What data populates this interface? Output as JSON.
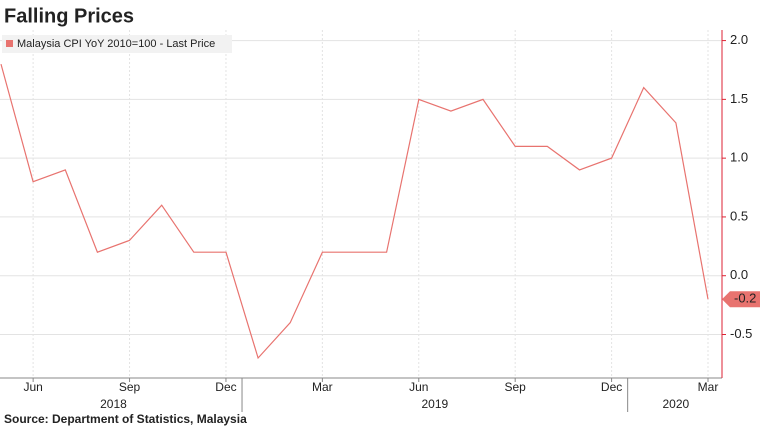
{
  "chart_data": {
    "type": "line",
    "title": "Falling Prices",
    "source": "Source: Department of Statistics, Malaysia",
    "x": [
      "2018-05",
      "2018-06",
      "2018-07",
      "2018-08",
      "2018-09",
      "2018-10",
      "2018-11",
      "2018-12",
      "2019-01",
      "2019-02",
      "2019-03",
      "2019-04",
      "2019-05",
      "2019-06",
      "2019-07",
      "2019-08",
      "2019-09",
      "2019-10",
      "2019-11",
      "2019-12",
      "2020-01",
      "2020-02",
      "2020-03"
    ],
    "xlim": [
      "2018-05",
      "2020-03"
    ],
    "xticks": [
      {
        "value": "2018-06",
        "label": "Jun"
      },
      {
        "value": "2018-09",
        "label": "Sep"
      },
      {
        "value": "2018-12",
        "label": "Dec"
      },
      {
        "value": "2019-03",
        "label": "Mar"
      },
      {
        "value": "2019-06",
        "label": "Jun"
      },
      {
        "value": "2019-09",
        "label": "Sep"
      },
      {
        "value": "2019-12",
        "label": "Dec"
      },
      {
        "value": "2020-03",
        "label": "Mar"
      }
    ],
    "years": [
      "2018",
      "2019",
      "2020"
    ],
    "series": [
      {
        "name": "Malaysia CPI YoY 2010=100 - Last Price",
        "color": "#e8736f",
        "values": [
          1.8,
          0.8,
          0.9,
          0.2,
          0.3,
          0.6,
          0.2,
          0.2,
          -0.7,
          -0.4,
          0.2,
          0.2,
          0.2,
          1.5,
          1.4,
          1.5,
          1.1,
          1.1,
          0.9,
          1.0,
          1.6,
          1.3,
          -0.2
        ],
        "last_label": "-0.2"
      }
    ],
    "ylim": [
      -0.87,
      2.09
    ],
    "yticks": [
      {
        "value": 2.0,
        "label": "2.0"
      },
      {
        "value": 1.5,
        "label": "1.5"
      },
      {
        "value": 1.0,
        "label": "1.0"
      },
      {
        "value": 0.5,
        "label": "0.5"
      },
      {
        "value": 0.0,
        "label": "0.0"
      },
      {
        "value": -0.5,
        "label": "-0.5"
      }
    ],
    "grid": true
  }
}
